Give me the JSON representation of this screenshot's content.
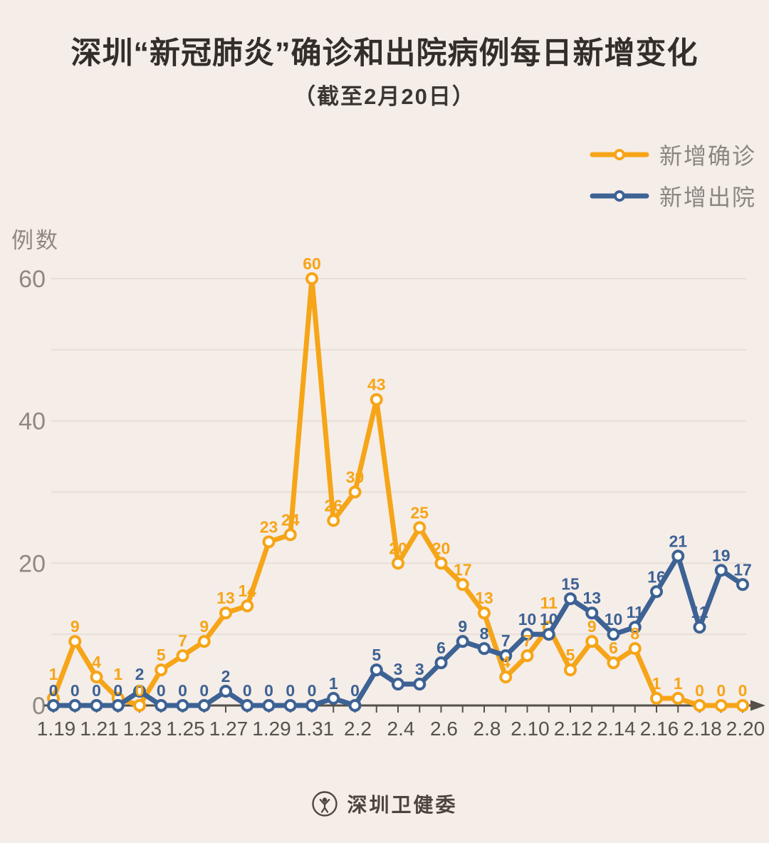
{
  "title": "深圳“新冠肺炎”确诊和出院病例每日新增变化",
  "subtitle": "（截至2月20日）",
  "legend": [
    {
      "label": "新增确诊",
      "color": "#f6a518"
    },
    {
      "label": "新增出院",
      "color": "#3d6294"
    }
  ],
  "footer": {
    "org": "深圳卫健委"
  },
  "colors": {
    "background": "#f5ede8",
    "grid": "#e7ded7",
    "axis": "#55504a",
    "y_tick_text": "#8f8882",
    "x_tick_text": "#57524c",
    "confirmed": "#f6a518",
    "discharged": "#3d6294"
  },
  "chart_data": {
    "type": "line",
    "title": "深圳“新冠肺炎”确诊和出院病例每日新增变化",
    "subtitle": "（截至2月20日）",
    "ylabel": "例数",
    "xlabel": "",
    "ylim": [
      0,
      60
    ],
    "yticks_labeled": [
      0,
      20,
      40,
      60
    ],
    "gridlines": [
      10,
      20,
      30,
      40,
      50,
      60
    ],
    "grid": "on",
    "legend_position": "top-right",
    "x_label_every": 2,
    "x": [
      "1.19",
      "1.20",
      "1.21",
      "1.22",
      "1.23",
      "1.24",
      "1.25",
      "1.26",
      "1.27",
      "1.28",
      "1.29",
      "1.30",
      "1.31",
      "2.1",
      "2.2",
      "2.3",
      "2.4",
      "2.5",
      "2.6",
      "2.7",
      "2.8",
      "2.9",
      "2.10",
      "2.11",
      "2.12",
      "2.13",
      "2.14",
      "2.15",
      "2.16",
      "2.17",
      "2.18",
      "2.19",
      "2.20"
    ],
    "series": [
      {
        "id": "confirmed",
        "name": "新增确诊",
        "color": "#f6a518",
        "values": [
          1,
          9,
          4,
          1,
          0,
          5,
          7,
          9,
          13,
          14,
          23,
          24,
          60,
          26,
          30,
          43,
          20,
          25,
          20,
          17,
          13,
          4,
          7,
          11,
          5,
          9,
          6,
          8,
          1,
          1,
          0,
          0,
          0
        ]
      },
      {
        "id": "discharged",
        "name": "新增出院",
        "color": "#3d6294",
        "values": [
          0,
          0,
          0,
          0,
          2,
          0,
          0,
          0,
          2,
          0,
          0,
          0,
          0,
          1,
          0,
          5,
          3,
          3,
          6,
          9,
          8,
          7,
          10,
          10,
          15,
          13,
          10,
          11,
          16,
          21,
          11,
          19,
          17
        ]
      }
    ]
  }
}
